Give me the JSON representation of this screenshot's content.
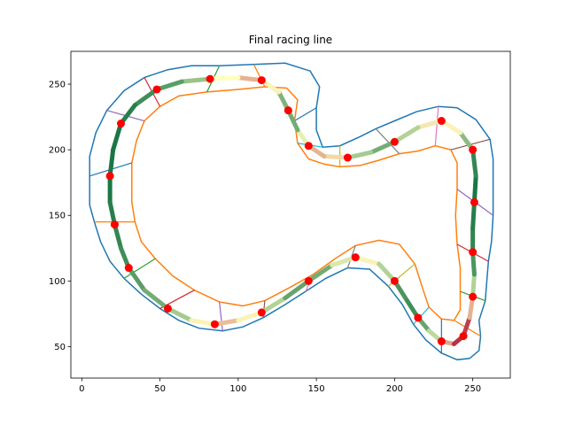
{
  "chart_data": {
    "type": "line",
    "title": "Final racing line",
    "xlabel": "",
    "ylabel": "",
    "xlim": [
      -7,
      274
    ],
    "ylim": [
      26,
      275
    ],
    "xticks": [
      0,
      50,
      100,
      150,
      200,
      250
    ],
    "yticks": [
      50,
      100,
      150,
      200,
      250
    ],
    "grid": false,
    "legend": "none",
    "colors": {
      "outer_boundary": "#1f77b4",
      "inner_boundary": "#ff7f0e",
      "waypoint": "#ff0000",
      "line_fast": "#006837",
      "line_mid": "#ffffbf",
      "line_slow": "#a50026",
      "segment_palette": [
        "#1f77b4",
        "#ff7f0e",
        "#2ca02c",
        "#d62728",
        "#9467bd",
        "#8c564b",
        "#e377c2",
        "#7f7f7f",
        "#bcbd22",
        "#17becf"
      ]
    },
    "series": [
      {
        "points": [
          [
            5,
            180
          ],
          [
            5,
            158
          ],
          [
            8,
            145
          ],
          [
            12,
            130
          ],
          [
            18,
            115
          ],
          [
            27,
            102
          ],
          [
            38,
            90
          ],
          [
            50,
            79
          ],
          [
            62,
            70
          ],
          [
            75,
            64
          ],
          [
            90,
            62
          ],
          [
            103,
            65
          ],
          [
            116,
            72
          ],
          [
            130,
            82
          ],
          [
            143,
            92
          ],
          [
            156,
            102
          ],
          [
            170,
            110
          ],
          [
            184,
            109
          ],
          [
            196,
            96
          ],
          [
            205,
            82
          ],
          [
            212,
            67
          ],
          [
            220,
            55
          ],
          [
            230,
            45
          ],
          [
            240,
            40
          ],
          [
            248,
            41
          ],
          [
            254,
            47
          ],
          [
            255,
            58
          ],
          [
            254,
            70
          ],
          [
            258,
            85
          ],
          [
            259,
            100
          ],
          [
            260,
            115
          ],
          [
            262,
            130
          ],
          [
            263,
            150
          ],
          [
            263,
            175
          ],
          [
            263,
            193
          ],
          [
            261,
            208
          ],
          [
            252,
            223
          ],
          [
            240,
            232
          ],
          [
            228,
            233
          ],
          [
            214,
            229
          ],
          [
            200,
            222
          ],
          [
            188,
            216
          ],
          [
            178,
            210
          ],
          [
            165,
            203
          ],
          [
            154,
            202
          ],
          [
            150,
            215
          ],
          [
            150,
            232
          ],
          [
            152,
            248
          ],
          [
            146,
            260
          ],
          [
            130,
            266
          ],
          [
            110,
            265
          ],
          [
            88,
            264
          ],
          [
            70,
            264
          ],
          [
            55,
            261
          ],
          [
            40,
            255
          ],
          [
            27,
            245
          ],
          [
            16,
            230
          ],
          [
            9,
            213
          ],
          [
            5,
            195
          ]
        ]
      },
      {
        "points": [
          [
            32,
            190
          ],
          [
            32,
            160
          ],
          [
            34,
            145
          ],
          [
            38,
            130
          ],
          [
            47,
            117
          ],
          [
            58,
            104
          ],
          [
            72,
            93
          ],
          [
            88,
            84
          ],
          [
            103,
            81
          ],
          [
            117,
            85
          ],
          [
            133,
            95
          ],
          [
            148,
            105
          ],
          [
            162,
            117
          ],
          [
            175,
            127
          ],
          [
            190,
            131
          ],
          [
            203,
            128
          ],
          [
            213,
            113
          ],
          [
            218,
            94
          ],
          [
            222,
            80
          ],
          [
            230,
            71
          ],
          [
            238,
            70
          ],
          [
            242,
            78
          ],
          [
            242,
            92
          ],
          [
            242,
            110
          ],
          [
            240,
            128
          ],
          [
            239,
            150
          ],
          [
            240,
            170
          ],
          [
            240,
            190
          ],
          [
            236,
            200
          ],
          [
            226,
            203
          ],
          [
            215,
            199
          ],
          [
            203,
            197
          ],
          [
            190,
            192
          ],
          [
            178,
            188
          ],
          [
            165,
            187
          ],
          [
            155,
            189
          ],
          [
            145,
            193
          ],
          [
            138,
            205
          ],
          [
            136,
            222
          ],
          [
            138,
            238
          ],
          [
            131,
            247
          ],
          [
            117,
            248
          ],
          [
            100,
            246
          ],
          [
            80,
            244
          ],
          [
            62,
            241
          ],
          [
            50,
            233
          ],
          [
            40,
            222
          ],
          [
            35,
            207
          ]
        ]
      },
      {
        "name": "racing line",
        "points": [
          [
            18,
            180
          ],
          [
            18,
            160
          ],
          [
            21,
            143
          ],
          [
            25,
            125
          ],
          [
            30,
            110
          ],
          [
            40,
            93
          ],
          [
            55,
            79
          ],
          [
            70,
            70
          ],
          [
            85,
            67
          ],
          [
            100,
            70
          ],
          [
            115,
            76
          ],
          [
            130,
            87
          ],
          [
            145,
            100
          ],
          [
            160,
            112
          ],
          [
            175,
            118
          ],
          [
            190,
            113
          ],
          [
            200,
            100
          ],
          [
            208,
            85
          ],
          [
            215,
            72
          ],
          [
            222,
            62
          ],
          [
            230,
            54
          ],
          [
            238,
            52
          ],
          [
            244,
            58
          ],
          [
            248,
            72
          ],
          [
            250,
            88
          ],
          [
            251,
            105
          ],
          [
            250,
            122
          ],
          [
            250,
            140
          ],
          [
            251,
            160
          ],
          [
            252,
            180
          ],
          [
            250,
            200
          ],
          [
            242,
            213
          ],
          [
            230,
            222
          ],
          [
            215,
            217
          ],
          [
            200,
            206
          ],
          [
            185,
            198
          ],
          [
            170,
            194
          ],
          [
            155,
            195
          ],
          [
            145,
            203
          ],
          [
            138,
            215
          ],
          [
            132,
            230
          ],
          [
            126,
            244
          ],
          [
            115,
            253
          ],
          [
            100,
            255
          ],
          [
            82,
            254
          ],
          [
            64,
            252
          ],
          [
            48,
            246
          ],
          [
            34,
            234
          ],
          [
            25,
            220
          ],
          [
            20,
            200
          ]
        ],
        "speed": [
          0.95,
          0.95,
          0.9,
          0.9,
          0.85,
          0.8,
          0.75,
          0.6,
          0.35,
          0.4,
          0.55,
          0.75,
          0.85,
          0.7,
          0.45,
          0.5,
          0.8,
          0.9,
          0.85,
          0.75,
          0.5,
          0.15,
          0.05,
          0.2,
          0.5,
          0.8,
          0.9,
          0.9,
          0.95,
          0.95,
          0.85,
          0.6,
          0.35,
          0.55,
          0.75,
          0.8,
          0.55,
          0.3,
          0.4,
          0.7,
          0.85,
          0.65,
          0.3,
          0.4,
          0.6,
          0.8,
          0.85,
          0.9,
          0.95,
          0.95
        ]
      }
    ]
  }
}
